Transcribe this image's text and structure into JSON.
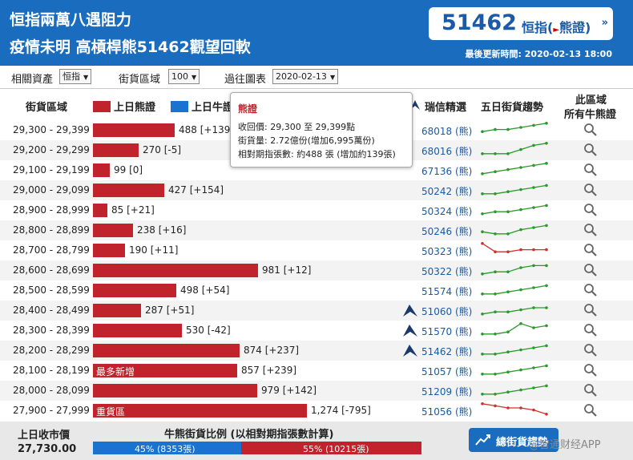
{
  "header": {
    "headline_1": "恒指兩萬八遇阻力",
    "headline_2": "疫情未明 高槓桿熊51462觀望回軟",
    "quote_number": "51462",
    "quote_name": "恒指",
    "quote_type": "熊證",
    "updated_label": "最後更新時間:",
    "updated_time": "2020-02-13 18:00"
  },
  "filters": {
    "asset_label": "相關資產",
    "asset_value": "恒指",
    "zone_label": "街貨區域",
    "zone_value": "100",
    "past_label": "過往圖表",
    "past_value": "2020-02-13"
  },
  "table_header": {
    "range": "街貨區域",
    "bear_legend": "上日熊證",
    "bull_legend": "上日牛證",
    "picks": "瑞信精選",
    "trend": "五日街貨趨勢",
    "zone_all_1": "此區域",
    "zone_all_2": "所有牛熊證"
  },
  "colors": {
    "bear": "#c0232b",
    "bull": "#1a73d0",
    "header": "#1a6cbf"
  },
  "rows": [
    {
      "range": "29,300 - 29,399",
      "value": 488,
      "label": "488 [+139]",
      "code": "68018 (熊)",
      "tag": "",
      "cs": false,
      "spark": [
        3,
        4,
        4,
        5,
        6,
        7
      ],
      "spark_color": "green"
    },
    {
      "range": "29,200 - 29,299",
      "value": 270,
      "label": "270 [-5]",
      "code": "68016 (熊)",
      "tag": "",
      "cs": false,
      "spark": [
        2,
        2,
        2,
        4,
        6,
        7
      ],
      "spark_color": "green"
    },
    {
      "range": "29,100 - 29,199",
      "value": 99,
      "label": "99 [0]",
      "code": "67136 (熊)",
      "tag": "",
      "cs": false,
      "spark": [
        2,
        3,
        4,
        5,
        6,
        7
      ],
      "spark_color": "green"
    },
    {
      "range": "29,000 - 29,099",
      "value": 427,
      "label": "427 [+154]",
      "code": "50242 (熊)",
      "tag": "",
      "cs": false,
      "spark": [
        2,
        2,
        3,
        4,
        5,
        6
      ],
      "spark_color": "green"
    },
    {
      "range": "28,900 - 28,999",
      "value": 85,
      "label": "85 [+21]",
      "code": "50324 (熊)",
      "tag": "",
      "cs": false,
      "spark": [
        2,
        3,
        3,
        4,
        5,
        6
      ],
      "spark_color": "green"
    },
    {
      "range": "28,800 - 28,899",
      "value": 238,
      "label": "238 [+16]",
      "code": "50246 (熊)",
      "tag": "",
      "cs": false,
      "spark": [
        3,
        2,
        2,
        4,
        5,
        6
      ],
      "spark_color": "green"
    },
    {
      "range": "28,700 - 28,799",
      "value": 190,
      "label": "190 [+11]",
      "code": "50323 (熊)",
      "tag": "",
      "cs": false,
      "spark": [
        7,
        3,
        3,
        4,
        4,
        4
      ],
      "spark_color": "red"
    },
    {
      "range": "28,600 - 28,699",
      "value": 981,
      "label": "981 [+12]",
      "code": "50322 (熊)",
      "tag": "",
      "cs": false,
      "spark": [
        2,
        3,
        3,
        5,
        6,
        6
      ],
      "spark_color": "green"
    },
    {
      "range": "28,500 - 28,599",
      "value": 498,
      "label": "498 [+54]",
      "code": "51574 (熊)",
      "tag": "",
      "cs": false,
      "spark": [
        2,
        2,
        3,
        4,
        5,
        6
      ],
      "spark_color": "green"
    },
    {
      "range": "28,400 - 28,499",
      "value": 287,
      "label": "287 [+51]",
      "code": "51060 (熊)",
      "tag": "",
      "cs": true,
      "spark": [
        2,
        3,
        3,
        4,
        5,
        5
      ],
      "spark_color": "green"
    },
    {
      "range": "28,300 - 28,399",
      "value": 530,
      "label": "530 [-42]",
      "code": "51570 (熊)",
      "tag": "",
      "cs": true,
      "spark": [
        2,
        2,
        3,
        7,
        5,
        6
      ],
      "spark_color": "green"
    },
    {
      "range": "28,200 - 28,299",
      "value": 874,
      "label": "874 [+237]",
      "code": "51462 (熊)",
      "tag": "",
      "cs": true,
      "spark": [
        2,
        2,
        3,
        4,
        5,
        6
      ],
      "spark_color": "green"
    },
    {
      "range": "28,100 - 28,199",
      "value": 857,
      "label": "857 [+239]",
      "code": "51057 (熊)",
      "tag": "最多新增",
      "cs": false,
      "spark": [
        2,
        2,
        3,
        4,
        5,
        6
      ],
      "spark_color": "green"
    },
    {
      "range": "28,000 - 28,099",
      "value": 979,
      "label": "979 [+142]",
      "code": "51209 (熊)",
      "tag": "",
      "cs": false,
      "spark": [
        2,
        2,
        3,
        4,
        5,
        6
      ],
      "spark_color": "green"
    },
    {
      "range": "27,900 - 27,999",
      "value": 1274,
      "label": "1,274 [-795]",
      "code": "51056 (熊)",
      "tag": "重貨區",
      "cs": false,
      "spark": [
        7,
        6,
        5,
        5,
        4,
        2
      ],
      "spark_color": "red"
    }
  ],
  "tooltip": {
    "title": "熊證",
    "line1": "收回價: 29,300 至 29,399點",
    "line2": "街貨量: 2.72億份(增加6,995萬份)",
    "line3": "相對期指張數: 約488 張 (增加約139張)"
  },
  "footer": {
    "prev_close_label": "上日收市價",
    "prev_close_value": "27,730.00",
    "ratio_title": "牛熊街貨比例 (以相對期指張數計算)",
    "bull_percent": 45,
    "bull_text": "45% (8353張)",
    "bear_text": "55% (10215張)",
    "trend_button": "總街貨趨勢"
  },
  "watermark": "@智通财经APP"
}
